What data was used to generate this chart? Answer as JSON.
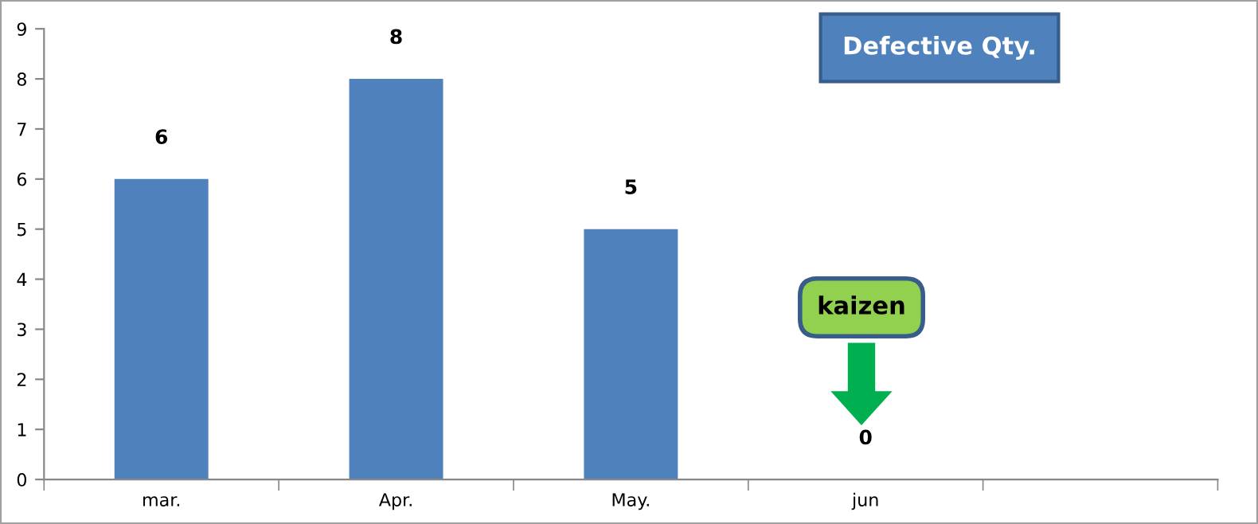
{
  "chart_data": {
    "type": "bar",
    "title": "Defective Qty.",
    "categories": [
      "mar.",
      "Apr.",
      "May.",
      "jun",
      null
    ],
    "values": [
      6,
      8,
      5,
      0,
      null
    ],
    "color": "#4f81bd",
    "ylim": [
      0,
      9
    ],
    "yticks": [
      0,
      1,
      2,
      3,
      4,
      5,
      6,
      7,
      8,
      9
    ],
    "grid": false,
    "data_labels": true,
    "legend": false,
    "annotations": [
      "kaizen"
    ]
  }
}
